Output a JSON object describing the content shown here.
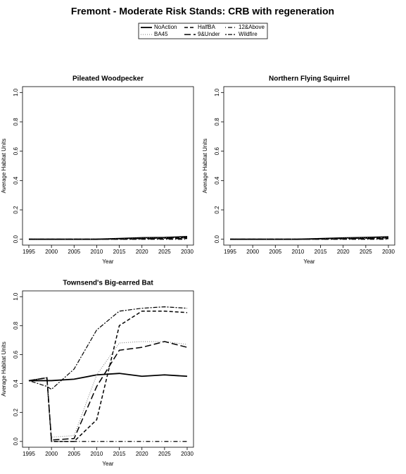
{
  "title": "Fremont  - Moderate Risk Stands: CRB with regeneration",
  "chart_data": [
    {
      "type": "line",
      "title": "Pileated Woodpecker",
      "x_label": "Year",
      "y_label": "Average Habitat Units",
      "x": [
        1995,
        1999,
        2000,
        2005,
        2010,
        2015,
        2020,
        2025,
        2030
      ],
      "xlim": [
        1993.6,
        2031.4
      ],
      "xticks": [
        1995,
        2000,
        2005,
        2010,
        2015,
        2020,
        2025,
        2030
      ],
      "ylim": [
        -0.04,
        1.04
      ],
      "yticks": [
        {
          "value": 0,
          "label": "0.0"
        },
        0.2,
        0.4,
        0.6,
        0.8,
        {
          "value": 1,
          "label": "1.0"
        }
      ],
      "series": [
        {
          "name": "NoAction",
          "color": "#000000",
          "linestyle": "solid",
          "values": [
            0,
            0,
            0,
            0,
            0,
            0.005,
            0.01,
            0.012,
            0.018
          ]
        },
        {
          "name": "HalfBA",
          "color": "#000000",
          "linestyle": "dashed",
          "values": [
            0,
            0,
            0,
            0,
            0,
            0.002,
            0.005,
            0.008,
            0.01
          ]
        },
        {
          "name": "12&Above",
          "color": "#000000",
          "linestyle": "dotdash",
          "values": [
            0,
            0,
            0,
            0,
            0,
            0,
            0,
            0,
            0
          ]
        },
        {
          "name": "BA45",
          "color": "#777777",
          "linestyle": "dotted",
          "values": [
            0,
            0,
            0,
            0,
            0,
            0.004,
            0.008,
            0.01,
            0.012
          ]
        },
        {
          "name": "9&Under",
          "color": "#000000",
          "linestyle": "longdash",
          "values": [
            0,
            0,
            0,
            0,
            0,
            0,
            0.002,
            0.003,
            0.005
          ]
        },
        {
          "name": "Wildfire",
          "color": "#000000",
          "linestyle": "twodash",
          "values": [
            0,
            0,
            0,
            0,
            0,
            0.003,
            0.006,
            0.008,
            0.01
          ]
        }
      ]
    },
    {
      "type": "line",
      "title": "Northern Flying Squirrel",
      "x_label": "Year",
      "y_label": "Average Habitat Units",
      "x": [
        1995,
        1999,
        2000,
        2005,
        2010,
        2015,
        2020,
        2025,
        2030
      ],
      "xlim": [
        1993.6,
        2031.4
      ],
      "xticks": [
        1995,
        2000,
        2005,
        2010,
        2015,
        2020,
        2025,
        2030
      ],
      "ylim": [
        -0.04,
        1.04
      ],
      "yticks": [
        {
          "value": 0,
          "label": "0.0"
        },
        0.2,
        0.4,
        0.6,
        0.8,
        {
          "value": 1,
          "label": "1.0"
        }
      ],
      "series": [
        {
          "name": "NoAction",
          "color": "#000000",
          "linestyle": "solid",
          "values": [
            0,
            0,
            0,
            0,
            0,
            0.004,
            0.009,
            0.012,
            0.016
          ]
        },
        {
          "name": "HalfBA",
          "color": "#000000",
          "linestyle": "dashed",
          "values": [
            0,
            0,
            0,
            0,
            0,
            0.002,
            0.005,
            0.007,
            0.009
          ]
        },
        {
          "name": "12&Above",
          "color": "#000000",
          "linestyle": "dotdash",
          "values": [
            0,
            0,
            0,
            0,
            0,
            0,
            0,
            0,
            0
          ]
        },
        {
          "name": "BA45",
          "color": "#777777",
          "linestyle": "dotted",
          "values": [
            0,
            0,
            0,
            0,
            0,
            0.003,
            0.007,
            0.01,
            0.012
          ]
        },
        {
          "name": "9&Under",
          "color": "#000000",
          "linestyle": "longdash",
          "values": [
            0,
            0,
            0,
            0,
            0,
            0,
            0.002,
            0.003,
            0.004
          ]
        },
        {
          "name": "Wildfire",
          "color": "#000000",
          "linestyle": "twodash",
          "values": [
            0,
            0,
            0,
            0,
            0,
            0.003,
            0.005,
            0.007,
            0.009
          ]
        }
      ]
    },
    {
      "type": "line",
      "title": "Townsend's Big-earred Bat",
      "x_label": "Year",
      "y_label": "Average Habitat Units",
      "x": [
        1995,
        1999,
        2000,
        2005,
        2010,
        2015,
        2020,
        2025,
        2030
      ],
      "xlim": [
        1993.6,
        2031.4
      ],
      "xticks": [
        1995,
        2000,
        2005,
        2010,
        2015,
        2020,
        2025,
        2030
      ],
      "ylim": [
        -0.04,
        1.04
      ],
      "yticks": [
        {
          "value": 0,
          "label": "0.0"
        },
        0.2,
        0.4,
        0.6,
        0.8,
        {
          "value": 1,
          "label": "1.0"
        }
      ],
      "series": [
        {
          "name": "NoAction",
          "color": "#000000",
          "linestyle": "solid",
          "values": [
            0.42,
            0.42,
            0.42,
            0.43,
            0.46,
            0.47,
            0.45,
            0.46,
            0.45
          ]
        },
        {
          "name": "HalfBA",
          "color": "#000000",
          "linestyle": "dashed",
          "values": [
            0.42,
            0.44,
            0,
            0,
            0.15,
            0.8,
            0.9,
            0.9,
            0.89
          ]
        },
        {
          "name": "12&Above",
          "color": "#000000",
          "linestyle": "dotdash",
          "values": [
            0.42,
            0.44,
            0,
            0,
            0,
            0,
            0,
            0,
            0
          ]
        },
        {
          "name": "BA45",
          "color": "#777777",
          "linestyle": "dotted",
          "values": [
            0.42,
            0.44,
            0.03,
            0.04,
            0.46,
            0.68,
            0.69,
            0.69,
            0.67
          ]
        },
        {
          "name": "9&Under",
          "color": "#000000",
          "linestyle": "longdash",
          "values": [
            0.42,
            0.44,
            0.01,
            0.02,
            0.38,
            0.63,
            0.65,
            0.69,
            0.65
          ]
        },
        {
          "name": "Wildfire",
          "color": "#000000",
          "linestyle": "twodash",
          "values": [
            0.42,
            0.38,
            0.36,
            0.5,
            0.77,
            0.9,
            0.92,
            0.93,
            0.92
          ]
        }
      ]
    }
  ]
}
